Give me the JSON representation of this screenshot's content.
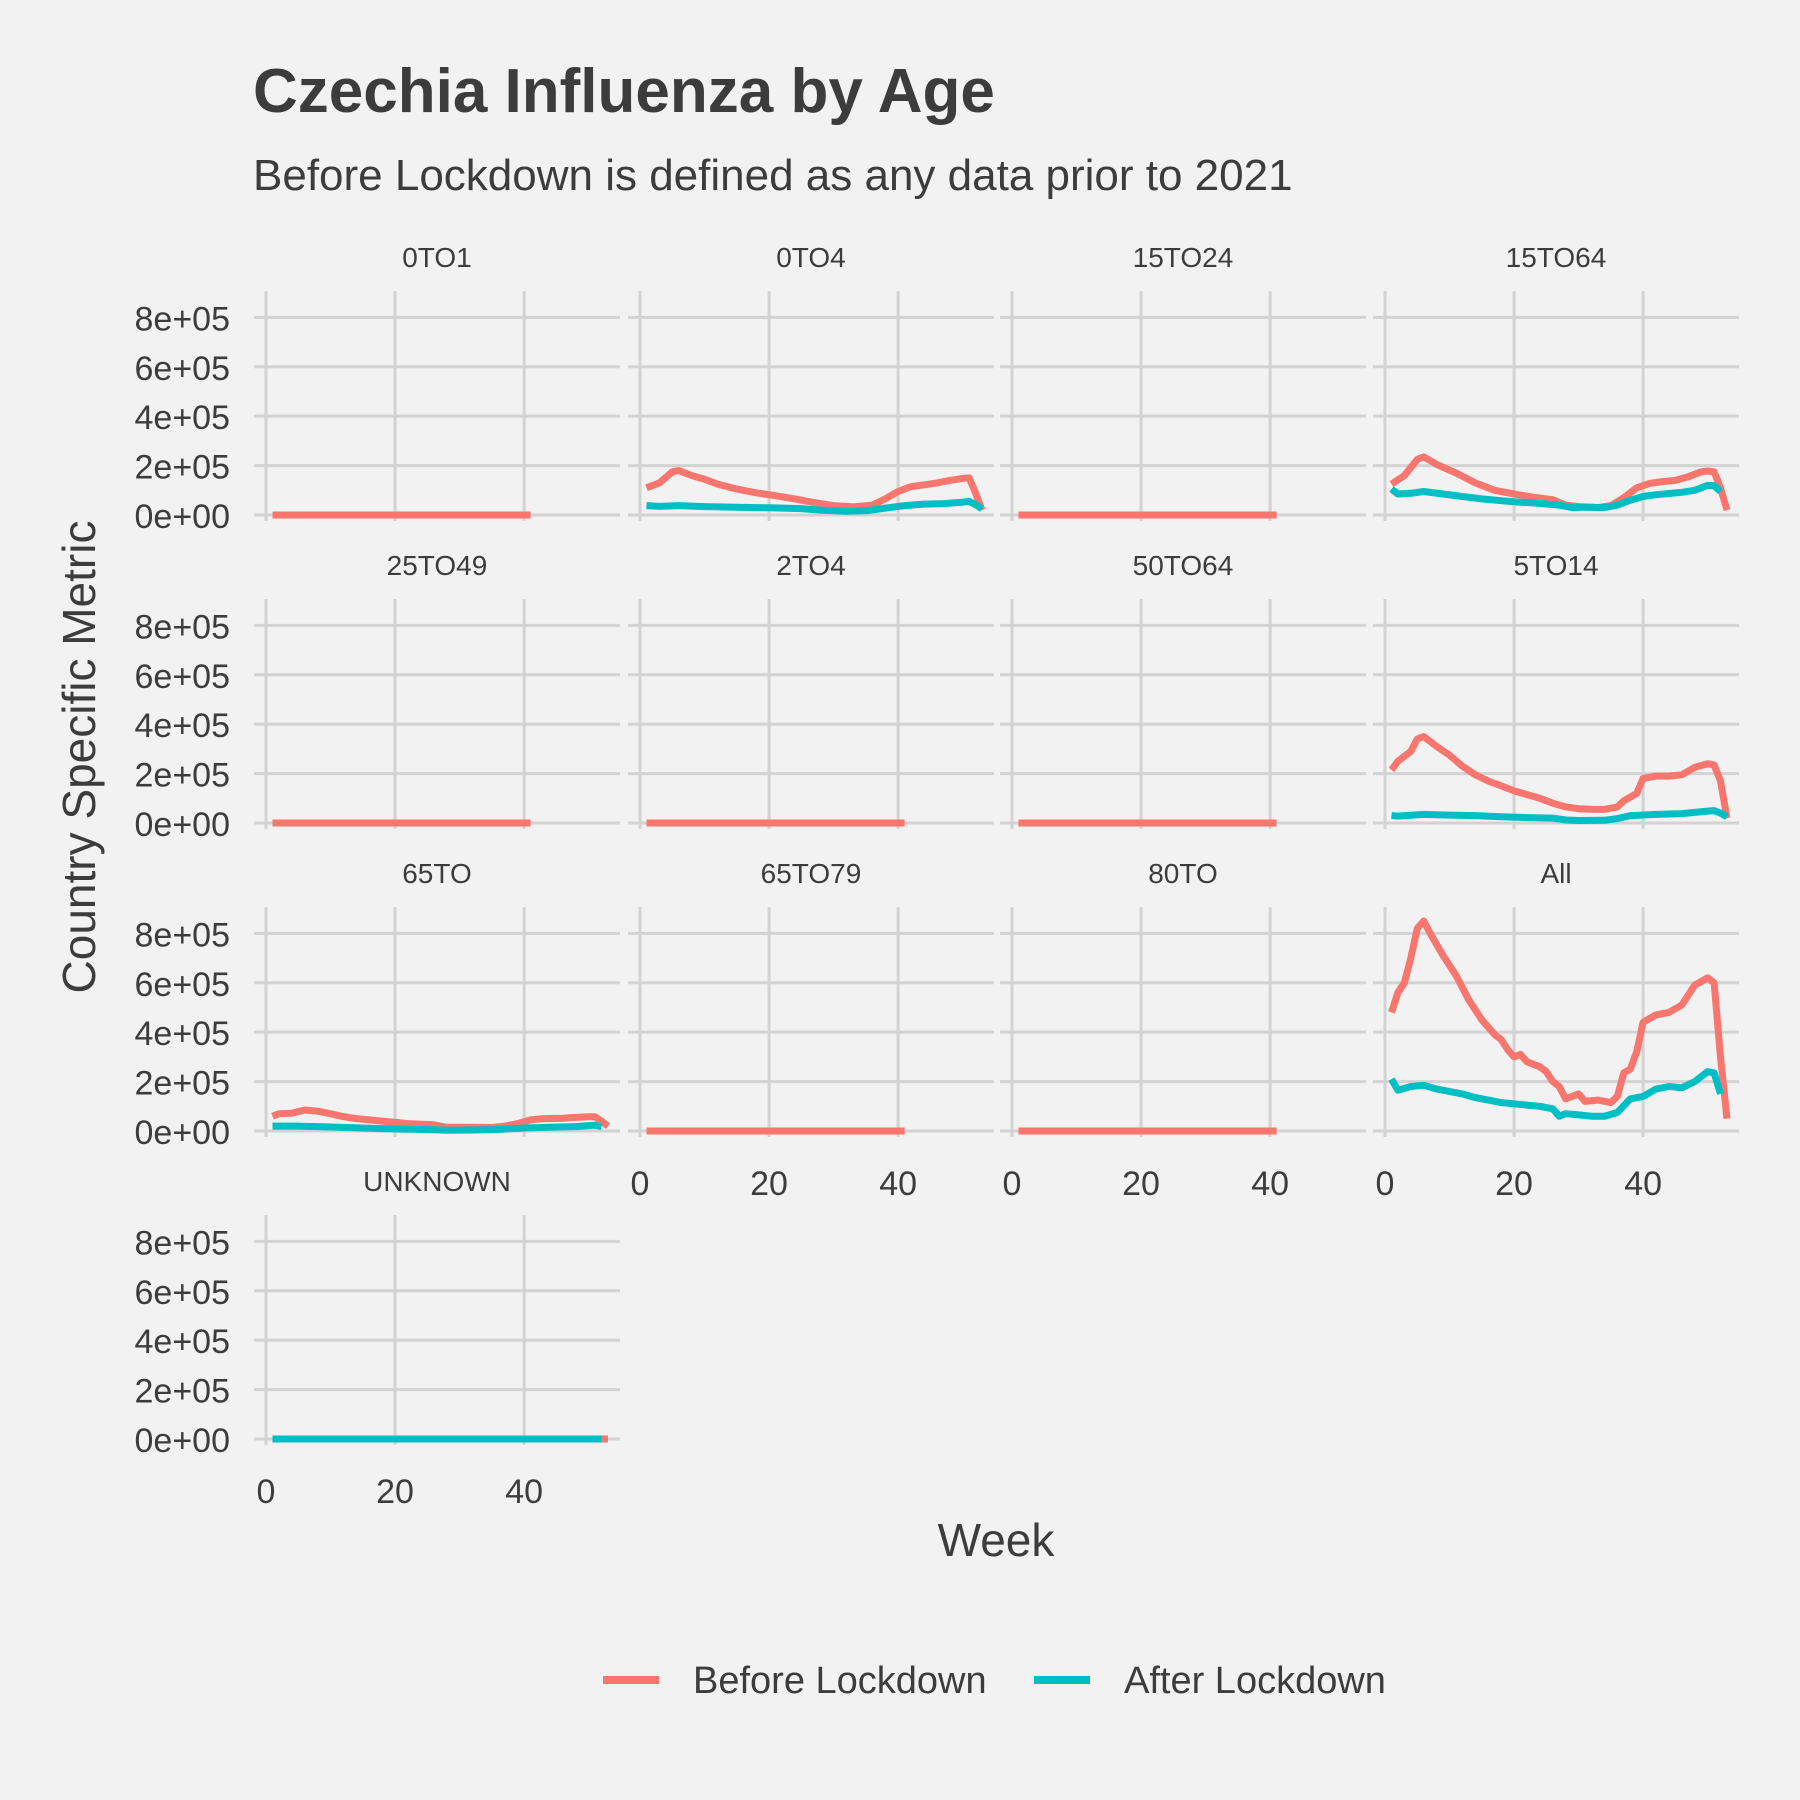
{
  "chart_data": {
    "type": "line",
    "title": "Czechia Influenza by Age",
    "subtitle": "Before Lockdown is defined as any data prior to 2021",
    "xlabel": "Week",
    "ylabel": "Country Specific Metric",
    "xlim": [
      0,
      53
    ],
    "ylim": [
      0,
      850000
    ],
    "x_ticks": [
      0,
      20,
      40
    ],
    "x_tick_labels": [
      "0",
      "20",
      "40"
    ],
    "y_ticks": [
      0,
      200000,
      400000,
      600000,
      800000
    ],
    "y_tick_labels": [
      "0e+00",
      "2e+05",
      "4e+05",
      "6e+05",
      "8e+05"
    ],
    "grid": true,
    "legend_position": "bottom",
    "legend": [
      {
        "name": "Before Lockdown",
        "color": "#f8766d"
      },
      {
        "name": "After Lockdown",
        "color": "#00bfc4"
      }
    ],
    "panels": [
      {
        "label": "0TO1",
        "before": [
          [
            1,
            0
          ],
          [
            41,
            0
          ]
        ],
        "after": []
      },
      {
        "label": "0TO4",
        "before": [
          [
            1,
            110000
          ],
          [
            3,
            130000
          ],
          [
            5,
            175000
          ],
          [
            6,
            180000
          ],
          [
            8,
            160000
          ],
          [
            10,
            145000
          ],
          [
            12,
            125000
          ],
          [
            15,
            105000
          ],
          [
            18,
            90000
          ],
          [
            21,
            78000
          ],
          [
            24,
            65000
          ],
          [
            27,
            50000
          ],
          [
            30,
            38000
          ],
          [
            33,
            33000
          ],
          [
            36,
            40000
          ],
          [
            38,
            65000
          ],
          [
            40,
            95000
          ],
          [
            42,
            115000
          ],
          [
            44,
            122000
          ],
          [
            46,
            130000
          ],
          [
            48,
            140000
          ],
          [
            50,
            148000
          ],
          [
            51,
            150000
          ],
          [
            52,
            90000
          ],
          [
            53,
            20000
          ]
        ],
        "after": [
          [
            1,
            38000
          ],
          [
            3,
            35000
          ],
          [
            6,
            38000
          ],
          [
            10,
            34000
          ],
          [
            15,
            31000
          ],
          [
            20,
            29000
          ],
          [
            25,
            26000
          ],
          [
            28,
            20000
          ],
          [
            32,
            15000
          ],
          [
            35,
            17000
          ],
          [
            38,
            28000
          ],
          [
            41,
            38000
          ],
          [
            44,
            44000
          ],
          [
            47,
            46000
          ],
          [
            50,
            52000
          ],
          [
            51,
            55000
          ],
          [
            52,
            42000
          ],
          [
            53,
            25000
          ]
        ]
      },
      {
        "label": "15TO24",
        "before": [
          [
            1,
            0
          ],
          [
            41,
            0
          ]
        ],
        "after": []
      },
      {
        "label": "15TO64",
        "before": [
          [
            1,
            125000
          ],
          [
            3,
            160000
          ],
          [
            5,
            225000
          ],
          [
            6,
            235000
          ],
          [
            8,
            205000
          ],
          [
            11,
            170000
          ],
          [
            14,
            130000
          ],
          [
            17,
            100000
          ],
          [
            20,
            85000
          ],
          [
            23,
            72000
          ],
          [
            26,
            62000
          ],
          [
            28,
            40000
          ],
          [
            30,
            34000
          ],
          [
            33,
            30000
          ],
          [
            35,
            38000
          ],
          [
            37,
            70000
          ],
          [
            39,
            110000
          ],
          [
            41,
            128000
          ],
          [
            43,
            135000
          ],
          [
            45,
            140000
          ],
          [
            47,
            155000
          ],
          [
            49,
            175000
          ],
          [
            50,
            178000
          ],
          [
            51,
            175000
          ],
          [
            52,
            110000
          ],
          [
            53,
            20000
          ]
        ],
        "after": [
          [
            1,
            105000
          ],
          [
            2,
            85000
          ],
          [
            4,
            88000
          ],
          [
            6,
            95000
          ],
          [
            9,
            85000
          ],
          [
            12,
            75000
          ],
          [
            15,
            65000
          ],
          [
            18,
            58000
          ],
          [
            21,
            52000
          ],
          [
            24,
            47000
          ],
          [
            27,
            40000
          ],
          [
            29,
            30000
          ],
          [
            31,
            32000
          ],
          [
            34,
            30000
          ],
          [
            36,
            40000
          ],
          [
            38,
            60000
          ],
          [
            40,
            75000
          ],
          [
            42,
            82000
          ],
          [
            44,
            87000
          ],
          [
            46,
            92000
          ],
          [
            48,
            100000
          ],
          [
            50,
            120000
          ],
          [
            51,
            118000
          ],
          [
            52,
            95000
          ]
        ]
      },
      {
        "label": "25TO49",
        "before": [
          [
            1,
            0
          ],
          [
            41,
            0
          ]
        ],
        "after": []
      },
      {
        "label": "2TO4",
        "before": [
          [
            1,
            0
          ],
          [
            41,
            0
          ]
        ],
        "after": []
      },
      {
        "label": "50TO64",
        "before": [
          [
            1,
            0
          ],
          [
            41,
            0
          ]
        ],
        "after": []
      },
      {
        "label": "5TO14",
        "before": [
          [
            1,
            215000
          ],
          [
            2,
            250000
          ],
          [
            4,
            290000
          ],
          [
            5,
            340000
          ],
          [
            6,
            350000
          ],
          [
            8,
            310000
          ],
          [
            10,
            275000
          ],
          [
            12,
            230000
          ],
          [
            14,
            195000
          ],
          [
            16,
            170000
          ],
          [
            18,
            150000
          ],
          [
            20,
            130000
          ],
          [
            22,
            115000
          ],
          [
            24,
            100000
          ],
          [
            26,
            80000
          ],
          [
            28,
            65000
          ],
          [
            30,
            58000
          ],
          [
            32,
            56000
          ],
          [
            34,
            55000
          ],
          [
            36,
            65000
          ],
          [
            37,
            90000
          ],
          [
            39,
            120000
          ],
          [
            40,
            180000
          ],
          [
            42,
            190000
          ],
          [
            44,
            190000
          ],
          [
            46,
            195000
          ],
          [
            48,
            225000
          ],
          [
            50,
            240000
          ],
          [
            51,
            235000
          ],
          [
            52,
            170000
          ],
          [
            53,
            20000
          ]
        ],
        "after": [
          [
            1,
            30000
          ],
          [
            2,
            28000
          ],
          [
            6,
            35000
          ],
          [
            10,
            32000
          ],
          [
            14,
            30000
          ],
          [
            18,
            25000
          ],
          [
            22,
            22000
          ],
          [
            26,
            20000
          ],
          [
            28,
            12000
          ],
          [
            30,
            10000
          ],
          [
            34,
            11000
          ],
          [
            36,
            18000
          ],
          [
            38,
            30000
          ],
          [
            42,
            35000
          ],
          [
            46,
            38000
          ],
          [
            50,
            48000
          ],
          [
            51,
            50000
          ],
          [
            52,
            40000
          ],
          [
            53,
            25000
          ]
        ]
      },
      {
        "label": "65TO",
        "before": [
          [
            1,
            60000
          ],
          [
            2,
            70000
          ],
          [
            4,
            72000
          ],
          [
            6,
            85000
          ],
          [
            8,
            80000
          ],
          [
            10,
            70000
          ],
          [
            12,
            58000
          ],
          [
            14,
            50000
          ],
          [
            18,
            40000
          ],
          [
            22,
            30000
          ],
          [
            26,
            25000
          ],
          [
            28,
            15000
          ],
          [
            32,
            15000
          ],
          [
            35,
            14000
          ],
          [
            37,
            20000
          ],
          [
            39,
            30000
          ],
          [
            41,
            45000
          ],
          [
            43,
            50000
          ],
          [
            46,
            52000
          ],
          [
            48,
            55000
          ],
          [
            50,
            58000
          ],
          [
            51,
            58000
          ],
          [
            52,
            40000
          ],
          [
            53,
            20000
          ]
        ],
        "after": [
          [
            1,
            20000
          ],
          [
            5,
            20000
          ],
          [
            10,
            16000
          ],
          [
            15,
            12000
          ],
          [
            20,
            8000
          ],
          [
            25,
            6000
          ],
          [
            28,
            3000
          ],
          [
            32,
            4000
          ],
          [
            36,
            6000
          ],
          [
            40,
            12000
          ],
          [
            44,
            15000
          ],
          [
            48,
            18000
          ],
          [
            50,
            22000
          ],
          [
            51,
            24000
          ],
          [
            52,
            18000
          ]
        ]
      },
      {
        "label": "65TO79",
        "before": [
          [
            1,
            0
          ],
          [
            41,
            0
          ]
        ],
        "after": []
      },
      {
        "label": "80TO",
        "before": [
          [
            1,
            0
          ],
          [
            41,
            0
          ]
        ],
        "after": []
      },
      {
        "label": "All",
        "before": [
          [
            1,
            480000
          ],
          [
            2,
            560000
          ],
          [
            3,
            600000
          ],
          [
            4,
            700000
          ],
          [
            5,
            820000
          ],
          [
            6,
            850000
          ],
          [
            7,
            800000
          ],
          [
            9,
            710000
          ],
          [
            11,
            630000
          ],
          [
            13,
            530000
          ],
          [
            15,
            450000
          ],
          [
            17,
            390000
          ],
          [
            18,
            370000
          ],
          [
            19,
            330000
          ],
          [
            20,
            300000
          ],
          [
            21,
            310000
          ],
          [
            22,
            280000
          ],
          [
            24,
            260000
          ],
          [
            25,
            240000
          ],
          [
            26,
            200000
          ],
          [
            27,
            180000
          ],
          [
            28,
            130000
          ],
          [
            30,
            150000
          ],
          [
            31,
            120000
          ],
          [
            33,
            125000
          ],
          [
            35,
            115000
          ],
          [
            36,
            140000
          ],
          [
            37,
            235000
          ],
          [
            38,
            250000
          ],
          [
            39,
            320000
          ],
          [
            40,
            440000
          ],
          [
            42,
            470000
          ],
          [
            44,
            480000
          ],
          [
            46,
            510000
          ],
          [
            47,
            550000
          ],
          [
            48,
            590000
          ],
          [
            50,
            620000
          ],
          [
            51,
            600000
          ],
          [
            52,
            300000
          ],
          [
            53,
            50000
          ]
        ],
        "after": [
          [
            1,
            210000
          ],
          [
            2,
            165000
          ],
          [
            4,
            180000
          ],
          [
            6,
            185000
          ],
          [
            8,
            170000
          ],
          [
            10,
            160000
          ],
          [
            12,
            150000
          ],
          [
            14,
            135000
          ],
          [
            16,
            125000
          ],
          [
            18,
            115000
          ],
          [
            20,
            110000
          ],
          [
            22,
            105000
          ],
          [
            24,
            100000
          ],
          [
            26,
            90000
          ],
          [
            27,
            60000
          ],
          [
            28,
            70000
          ],
          [
            30,
            65000
          ],
          [
            32,
            60000
          ],
          [
            34,
            60000
          ],
          [
            36,
            75000
          ],
          [
            38,
            130000
          ],
          [
            40,
            140000
          ],
          [
            42,
            170000
          ],
          [
            44,
            180000
          ],
          [
            46,
            175000
          ],
          [
            48,
            200000
          ],
          [
            50,
            240000
          ],
          [
            51,
            235000
          ],
          [
            52,
            150000
          ]
        ]
      },
      {
        "label": "UNKNOWN",
        "before": [
          [
            52,
            0
          ],
          [
            53,
            0
          ]
        ],
        "after": [
          [
            1,
            0
          ],
          [
            52,
            0
          ]
        ]
      }
    ]
  }
}
